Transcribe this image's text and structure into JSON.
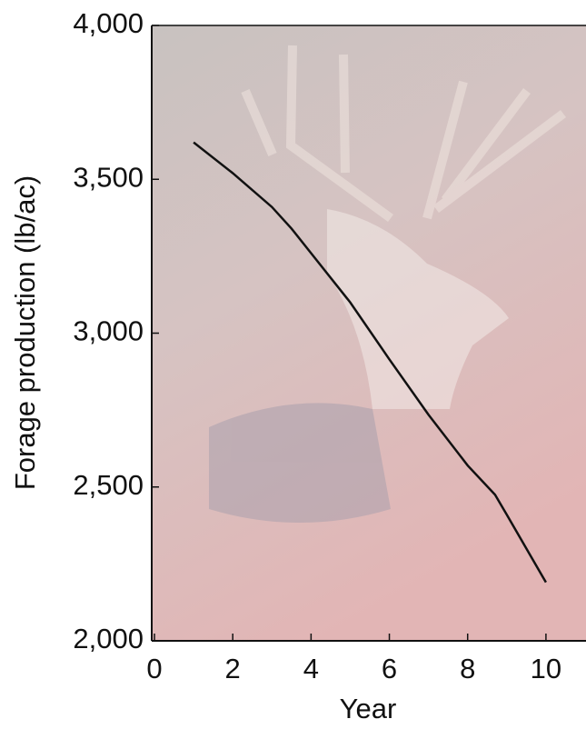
{
  "chart_data": {
    "type": "line",
    "x_label": "Year",
    "y_label": "Forage production (lb/ac)",
    "x": [
      1,
      2,
      3,
      3.5,
      4,
      5,
      6,
      7,
      8,
      8.7,
      9,
      10
    ],
    "series": [
      {
        "color": "#111111",
        "values": [
          3620,
          3520,
          3410,
          3340,
          3260,
          3100,
          2915,
          2735,
          2570,
          2475,
          2410,
          2190
        ]
      }
    ],
    "xlim": [
      0,
      11
    ],
    "ylim": [
      2000,
      4000
    ],
    "xticks": [
      0,
      2,
      4,
      6,
      8,
      10
    ],
    "yticks": [
      {
        "value": 2000,
        "label": "2,000"
      },
      {
        "value": 2500,
        "label": "2,500"
      },
      {
        "value": 3000,
        "label": "3,000"
      },
      {
        "value": 3500,
        "label": "3,500"
      },
      {
        "value": 4000,
        "label": "4,000"
      }
    ]
  }
}
